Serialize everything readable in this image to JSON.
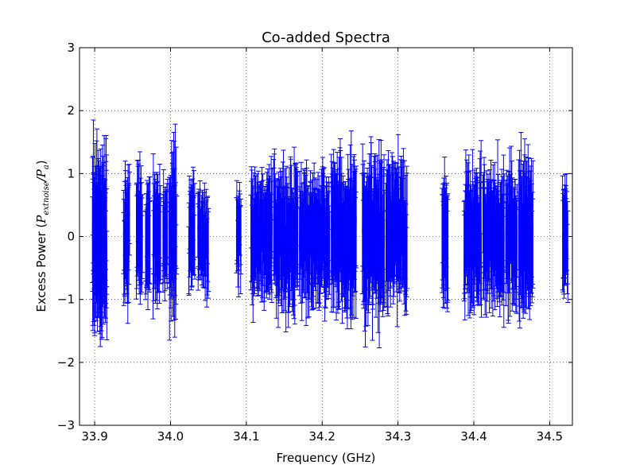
{
  "chart_data": {
    "type": "errorbar",
    "title": "Co-added Spectra",
    "xlabel": "Frequency (GHz)",
    "ylabel_main": "Excess Power (",
    "ylabel_sub1": "extnoise",
    "ylabel_sub2": "a",
    "ylabel_p": "P",
    "ylabel_slash": "/",
    "ylabel_close": ")",
    "xlim": [
      33.88,
      34.53
    ],
    "ylim": [
      -3,
      3
    ],
    "xticks": [
      33.9,
      34.0,
      34.1,
      34.2,
      34.3,
      34.4,
      34.5
    ],
    "xtick_labels": [
      "33.9",
      "34.0",
      "34.1",
      "34.2",
      "34.3",
      "34.4",
      "34.5"
    ],
    "yticks": [
      -3,
      -2,
      -1,
      0,
      1,
      2,
      3
    ],
    "ytick_labels": [
      "−3",
      "−2",
      "−1",
      "0",
      "1",
      "2",
      "3"
    ],
    "grid": true,
    "series_color": "#0000ff",
    "series": [
      {
        "segments": [
          {
            "x0": 33.897,
            "x1": 33.916,
            "n": 90,
            "spread": 0.65,
            "err": 0.9
          },
          {
            "x0": 33.938,
            "x1": 33.946,
            "n": 22,
            "spread": 0.45,
            "err": 0.75
          },
          {
            "x0": 33.955,
            "x1": 33.963,
            "n": 20,
            "spread": 0.4,
            "err": 0.75
          },
          {
            "x0": 33.967,
            "x1": 33.973,
            "n": 16,
            "spread": 0.38,
            "err": 0.7
          },
          {
            "x0": 33.977,
            "x1": 33.987,
            "n": 26,
            "spread": 0.45,
            "err": 0.75
          },
          {
            "x0": 33.99,
            "x1": 33.996,
            "n": 16,
            "spread": 0.35,
            "err": 0.7
          },
          {
            "x0": 33.998,
            "x1": 34.008,
            "n": 30,
            "spread": 0.55,
            "err": 0.8
          },
          {
            "x0": 34.024,
            "x1": 34.032,
            "n": 20,
            "spread": 0.4,
            "err": 0.6
          },
          {
            "x0": 34.036,
            "x1": 34.05,
            "n": 34,
            "spread": 0.35,
            "err": 0.55
          },
          {
            "x0": 34.087,
            "x1": 34.093,
            "n": 14,
            "spread": 0.35,
            "err": 0.6
          },
          {
            "x0": 34.106,
            "x1": 34.134,
            "n": 70,
            "spread": 0.45,
            "err": 0.7
          },
          {
            "x0": 34.136,
            "x1": 34.168,
            "n": 80,
            "spread": 0.5,
            "err": 0.75
          },
          {
            "x0": 34.17,
            "x1": 34.21,
            "n": 100,
            "spread": 0.45,
            "err": 0.7
          },
          {
            "x0": 34.212,
            "x1": 34.245,
            "n": 85,
            "spread": 0.55,
            "err": 0.8
          },
          {
            "x0": 34.253,
            "x1": 34.282,
            "n": 75,
            "spread": 0.55,
            "err": 0.85
          },
          {
            "x0": 34.284,
            "x1": 34.312,
            "n": 70,
            "spread": 0.5,
            "err": 0.8
          },
          {
            "x0": 34.358,
            "x1": 34.366,
            "n": 22,
            "spread": 0.45,
            "err": 0.75
          },
          {
            "x0": 34.387,
            "x1": 34.41,
            "n": 58,
            "spread": 0.5,
            "err": 0.8
          },
          {
            "x0": 34.412,
            "x1": 34.44,
            "n": 70,
            "spread": 0.45,
            "err": 0.75
          },
          {
            "x0": 34.442,
            "x1": 34.457,
            "n": 38,
            "spread": 0.45,
            "err": 0.75
          },
          {
            "x0": 34.459,
            "x1": 34.478,
            "n": 48,
            "spread": 0.55,
            "err": 0.85
          },
          {
            "x0": 34.517,
            "x1": 34.524,
            "n": 18,
            "spread": 0.35,
            "err": 0.7
          }
        ]
      }
    ]
  }
}
